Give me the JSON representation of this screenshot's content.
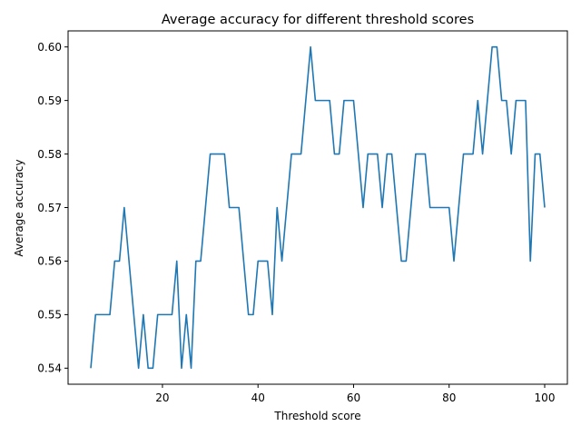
{
  "chart_data": {
    "type": "line",
    "title": "Average accuracy for different threshold scores",
    "xlabel": "Threshold score",
    "ylabel": "Average accuracy",
    "xlim": [
      0.25,
      104.75
    ],
    "ylim": [
      0.537,
      0.603
    ],
    "xticks": [
      20,
      40,
      60,
      80,
      100
    ],
    "xtick_labels": [
      "20",
      "40",
      "60",
      "80",
      "100"
    ],
    "yticks": [
      0.54,
      0.55,
      0.56,
      0.57,
      0.58,
      0.59,
      0.6
    ],
    "ytick_labels": [
      "0.54",
      "0.55",
      "0.56",
      "0.57",
      "0.58",
      "0.59",
      "0.60"
    ],
    "grid": false,
    "colors": {
      "line": "#1f77b4"
    },
    "x": [
      5,
      6,
      7,
      8,
      9,
      10,
      11,
      12,
      13,
      14,
      15,
      16,
      17,
      18,
      19,
      20,
      21,
      22,
      23,
      24,
      25,
      26,
      27,
      28,
      29,
      30,
      31,
      32,
      33,
      34,
      35,
      36,
      37,
      38,
      39,
      40,
      41,
      42,
      43,
      44,
      45,
      46,
      47,
      48,
      49,
      50,
      51,
      52,
      53,
      54,
      55,
      56,
      57,
      58,
      59,
      60,
      61,
      62,
      63,
      64,
      65,
      66,
      67,
      68,
      69,
      70,
      71,
      72,
      73,
      74,
      75,
      76,
      77,
      78,
      79,
      80,
      81,
      82,
      83,
      84,
      85,
      86,
      87,
      88,
      89,
      90,
      91,
      92,
      93,
      94,
      95,
      96,
      97,
      98,
      99,
      100
    ],
    "series": [
      {
        "values": [
          0.54,
          0.55,
          0.55,
          0.55,
          0.55,
          0.56,
          0.56,
          0.57,
          0.56,
          0.55,
          0.54,
          0.55,
          0.54,
          0.54,
          0.55,
          0.55,
          0.55,
          0.55,
          0.56,
          0.54,
          0.55,
          0.54,
          0.56,
          0.56,
          0.57,
          0.58,
          0.58,
          0.58,
          0.58,
          0.57,
          0.57,
          0.57,
          0.56,
          0.55,
          0.55,
          0.56,
          0.56,
          0.56,
          0.55,
          0.57,
          0.56,
          0.57,
          0.58,
          0.58,
          0.58,
          0.59,
          0.6,
          0.59,
          0.59,
          0.59,
          0.59,
          0.58,
          0.58,
          0.59,
          0.59,
          0.59,
          0.58,
          0.57,
          0.58,
          0.58,
          0.58,
          0.57,
          0.58,
          0.58,
          0.57,
          0.56,
          0.56,
          0.57,
          0.58,
          0.58,
          0.58,
          0.57,
          0.57,
          0.57,
          0.57,
          0.57,
          0.56,
          0.57,
          0.58,
          0.58,
          0.58,
          0.59,
          0.58,
          0.59,
          0.6,
          0.6,
          0.59,
          0.59,
          0.58,
          0.59,
          0.59,
          0.59,
          0.56,
          0.58,
          0.58,
          0.57
        ]
      }
    ]
  }
}
